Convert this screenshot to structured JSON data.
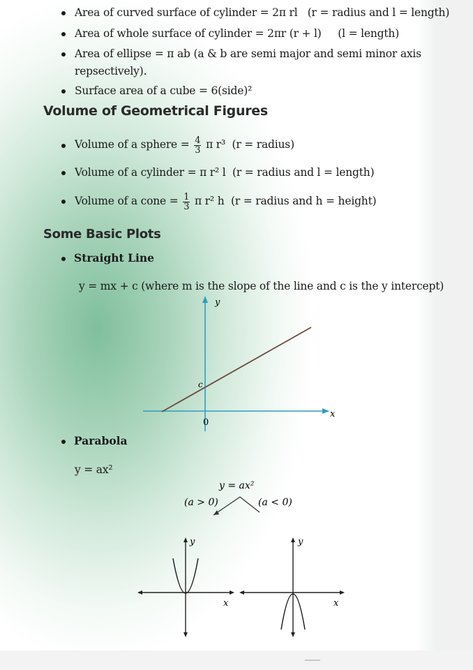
{
  "area": {
    "curved_cylinder": {
      "label": "Area of curved surface of cylinder = 2π rl",
      "note": "(r = radius and l = length)"
    },
    "whole_cylinder": {
      "label": "Area of whole surface of cylinder = 2πr (r + l)",
      "note": "(l = length)"
    },
    "ellipse": {
      "line1": "Area of ellipse = π ab (a & b are semi major and semi minor axis",
      "line2": "repsectively)."
    },
    "cube": {
      "label": "Surface area of a cube = 6(side)²"
    }
  },
  "volume": {
    "heading": "Volume of Geometrical Figures",
    "sphere": {
      "prefix": "Volume of a sphere =",
      "num": "4",
      "den": "3",
      "suffix": "π r³",
      "note": "(r = radius)"
    },
    "cylinder": {
      "label": "Volume of a cylinder = π r² l",
      "note": "(r = radius and l = length)"
    },
    "cone": {
      "prefix": "Volume of a cone =",
      "num": "1",
      "den": "3",
      "suffix": "π r² h",
      "note": "(r = radius and h = height)"
    }
  },
  "plots": {
    "heading": "Some Basic Plots",
    "straight_line": {
      "title": "Straight Line",
      "equation": "y = mx + c  (where m is the slope of the line and c is the y intercept)",
      "y_axis": "y",
      "x_axis": "x",
      "origin": "0",
      "intercept": "c"
    },
    "parabola": {
      "title": "Parabola",
      "equation": "y = ax²",
      "diagram_eq": "y = ax²",
      "pos_label": "(a > 0)",
      "neg_label": "(a < 0)",
      "y_axis": "y",
      "x_axis": "x"
    }
  }
}
